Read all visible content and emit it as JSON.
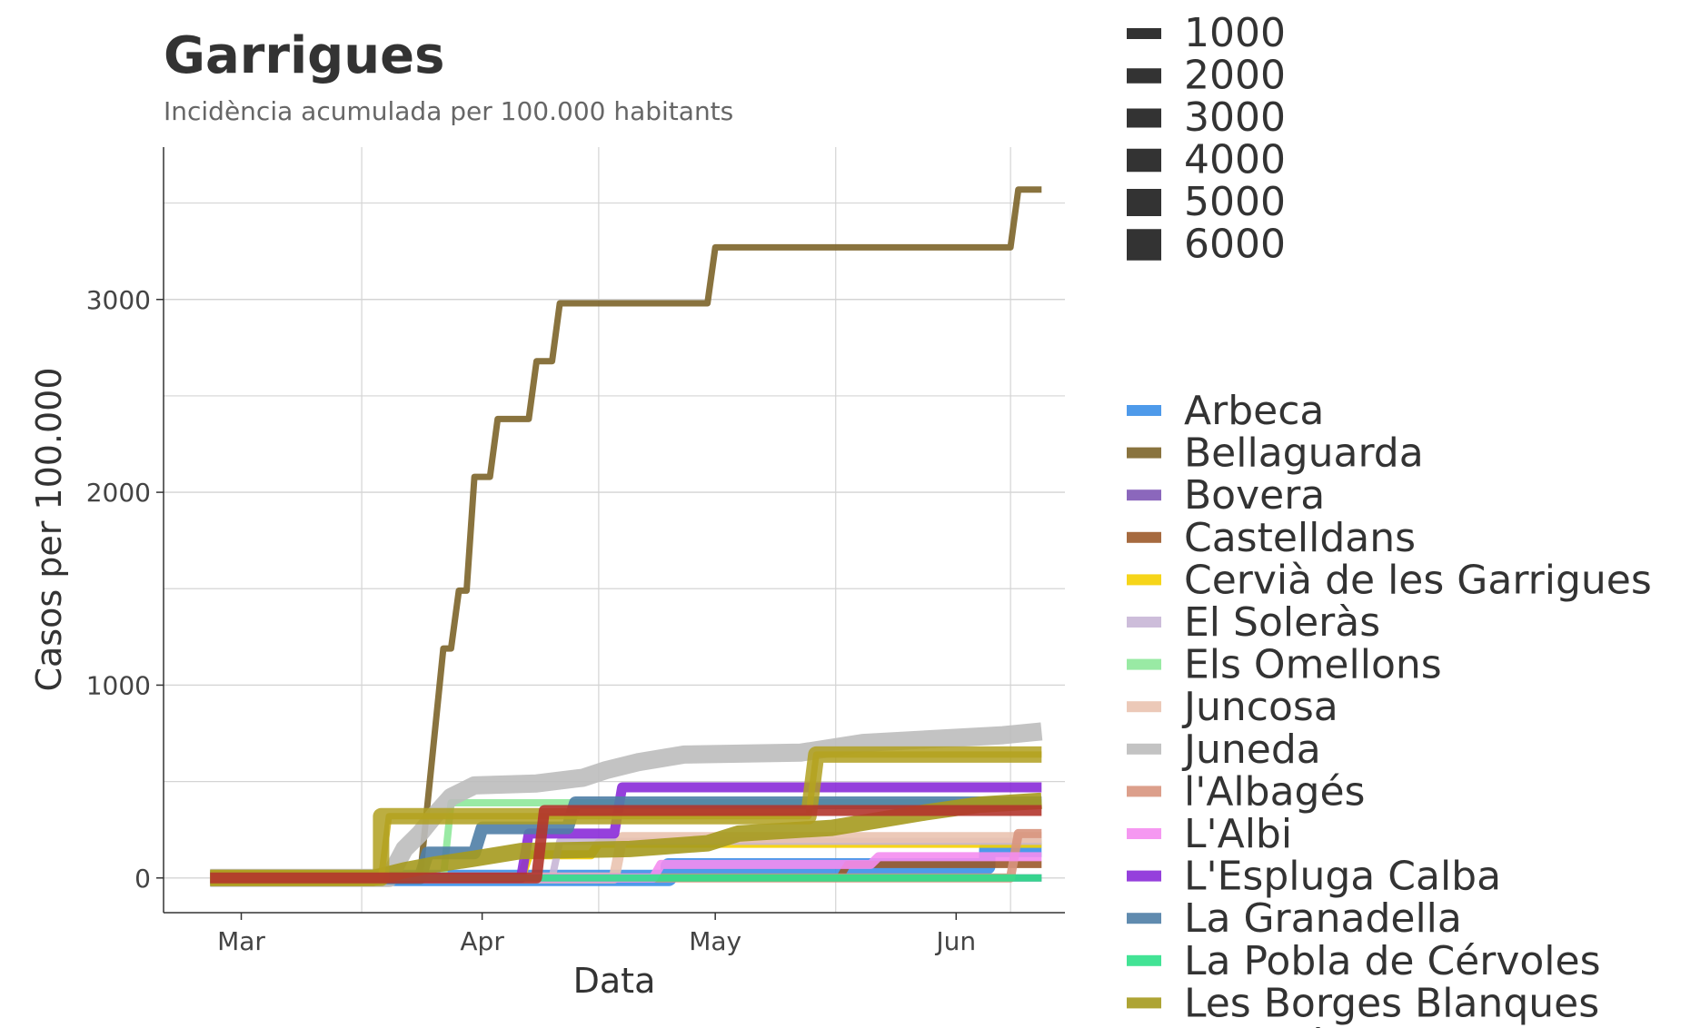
{
  "chart_data": {
    "type": "line",
    "title": "Garrigues",
    "subtitle": "Incidència acumulada per 100.000 habitants",
    "xlabel": "Data",
    "ylabel": "Casos per 100.000",
    "x_ticks": [
      {
        "label": "Mar",
        "date": "2020-03-01"
      },
      {
        "label": "Apr",
        "date": "2020-04-01"
      },
      {
        "label": "May",
        "date": "2020-05-01"
      },
      {
        "label": "Jun",
        "date": "2020-06-01"
      }
    ],
    "y_ticks": [
      0,
      1000,
      2000,
      3000
    ],
    "xlim": [
      "2020-02-20",
      "2020-06-15"
    ],
    "ylim": [
      -180,
      3790
    ],
    "grid": true,
    "size_legend": {
      "labels": [
        "1000",
        "2000",
        "3000",
        "4000",
        "5000",
        "6000"
      ],
      "color": "#333333"
    },
    "color_legend_visible_count": 16,
    "series": [
      {
        "name": "Arbeca",
        "color": "#3B8FE8",
        "opacity": 0.9,
        "width": 18,
        "points": [
          [
            "2020-02-26",
            0
          ],
          [
            "2020-04-25",
            0
          ],
          [
            "2020-04-25",
            60
          ],
          [
            "2020-06-05",
            60
          ],
          [
            "2020-06-05",
            150
          ],
          [
            "2020-06-12",
            150
          ]
        ]
      },
      {
        "name": "Bellaguarda",
        "color": "#7C6429",
        "opacity": 0.9,
        "width": 7,
        "points": [
          [
            "2020-02-26",
            0
          ],
          [
            "2020-03-24",
            0
          ],
          [
            "2020-03-27",
            1190
          ],
          [
            "2020-03-28",
            1190
          ],
          [
            "2020-03-29",
            1490
          ],
          [
            "2020-03-30",
            1490
          ],
          [
            "2020-03-31",
            2080
          ],
          [
            "2020-04-02",
            2080
          ],
          [
            "2020-04-03",
            2380
          ],
          [
            "2020-04-07",
            2380
          ],
          [
            "2020-04-08",
            2680
          ],
          [
            "2020-04-10",
            2680
          ],
          [
            "2020-04-11",
            2980
          ],
          [
            "2020-04-30",
            2980
          ],
          [
            "2020-05-01",
            3270
          ],
          [
            "2020-06-08",
            3270
          ],
          [
            "2020-06-09",
            3570
          ],
          [
            "2020-06-12",
            3570
          ]
        ]
      },
      {
        "name": "Bovera",
        "color": "#7E57B5",
        "opacity": 0.9,
        "width": 8,
        "points": [
          [
            "2020-02-26",
            0
          ],
          [
            "2020-06-12",
            0
          ]
        ]
      },
      {
        "name": "Castelldans",
        "color": "#9C5A2A",
        "opacity": 0.9,
        "width": 8,
        "points": [
          [
            "2020-02-26",
            0
          ],
          [
            "2020-05-17",
            0
          ],
          [
            "2020-05-18",
            70
          ],
          [
            "2020-06-12",
            70
          ]
        ]
      },
      {
        "name": "Cervià de les Garrigues",
        "color": "#F5D000",
        "opacity": 0.9,
        "width": 10,
        "points": [
          [
            "2020-02-26",
            0
          ],
          [
            "2020-04-06",
            0
          ],
          [
            "2020-04-07",
            120
          ],
          [
            "2020-04-15",
            120
          ],
          [
            "2020-04-16",
            180
          ],
          [
            "2020-06-12",
            180
          ]
        ]
      },
      {
        "name": "El Soleràs",
        "color": "#C8B6D6",
        "opacity": 0.9,
        "width": 8,
        "points": [
          [
            "2020-02-26",
            0
          ],
          [
            "2020-04-10",
            0
          ],
          [
            "2020-04-11",
            190
          ],
          [
            "2020-06-12",
            190
          ]
        ]
      },
      {
        "name": "Els Omellons",
        "color": "#8EE89A",
        "opacity": 0.9,
        "width": 8,
        "points": [
          [
            "2020-02-26",
            0
          ],
          [
            "2020-03-27",
            0
          ],
          [
            "2020-03-28",
            390
          ],
          [
            "2020-04-09",
            390
          ],
          [
            "2020-04-10",
            390
          ],
          [
            "2020-06-12",
            390
          ]
        ]
      },
      {
        "name": "Juncosa",
        "color": "#EAC3B0",
        "opacity": 0.9,
        "width": 12,
        "points": [
          [
            "2020-02-26",
            0
          ],
          [
            "2020-04-18",
            0
          ],
          [
            "2020-04-19",
            210
          ],
          [
            "2020-06-12",
            210
          ]
        ]
      },
      {
        "name": "Juneda",
        "color": "#BDBDBD",
        "opacity": 0.9,
        "width": 20,
        "points": [
          [
            "2020-02-26",
            0
          ],
          [
            "2020-03-20",
            0
          ],
          [
            "2020-03-22",
            150
          ],
          [
            "2020-03-24",
            230
          ],
          [
            "2020-03-26",
            330
          ],
          [
            "2020-03-28",
            420
          ],
          [
            "2020-03-31",
            480
          ],
          [
            "2020-04-08",
            490
          ],
          [
            "2020-04-14",
            520
          ],
          [
            "2020-04-17",
            560
          ],
          [
            "2020-04-21",
            600
          ],
          [
            "2020-04-27",
            640
          ],
          [
            "2020-05-12",
            650
          ],
          [
            "2020-05-20",
            700
          ],
          [
            "2020-06-07",
            740
          ],
          [
            "2020-06-12",
            760
          ]
        ]
      },
      {
        "name": "l'Albagés",
        "color": "#D8957E",
        "opacity": 0.9,
        "width": 10,
        "points": [
          [
            "2020-02-26",
            0
          ],
          [
            "2020-06-08",
            0
          ],
          [
            "2020-06-09",
            230
          ],
          [
            "2020-06-12",
            230
          ]
        ]
      },
      {
        "name": "L'Albi",
        "color": "#F48DF0",
        "opacity": 0.9,
        "width": 10,
        "points": [
          [
            "2020-02-26",
            0
          ],
          [
            "2020-04-23",
            0
          ],
          [
            "2020-04-24",
            70
          ],
          [
            "2020-05-21",
            70
          ],
          [
            "2020-05-22",
            110
          ],
          [
            "2020-06-12",
            110
          ]
        ]
      },
      {
        "name": "L'Espluga Calba",
        "color": "#8A2BD8",
        "opacity": 0.9,
        "width": 11,
        "points": [
          [
            "2020-02-26",
            0
          ],
          [
            "2020-04-06",
            0
          ],
          [
            "2020-04-07",
            230
          ],
          [
            "2020-04-18",
            230
          ],
          [
            "2020-04-19",
            470
          ],
          [
            "2020-06-12",
            470
          ]
        ]
      },
      {
        "name": "La Granadella",
        "color": "#4F7EA6",
        "opacity": 0.9,
        "width": 14,
        "points": [
          [
            "2020-02-26",
            0
          ],
          [
            "2020-03-24",
            0
          ],
          [
            "2020-03-25",
            130
          ],
          [
            "2020-03-31",
            130
          ],
          [
            "2020-04-01",
            260
          ],
          [
            "2020-04-12",
            260
          ],
          [
            "2020-04-13",
            390
          ],
          [
            "2020-06-12",
            390
          ]
        ]
      },
      {
        "name": "La Pobla de Cérvoles",
        "color": "#2EE08A",
        "opacity": 0.9,
        "width": 8,
        "points": [
          [
            "2020-02-26",
            0
          ],
          [
            "2020-06-12",
            0
          ]
        ]
      },
      {
        "name": "Les Borges Blanques",
        "color": "#A59A1E",
        "opacity": 0.9,
        "width": 18,
        "points": [
          [
            "2020-02-26",
            0
          ],
          [
            "2020-03-18",
            0
          ],
          [
            "2020-03-22",
            40
          ],
          [
            "2020-03-26",
            70
          ],
          [
            "2020-03-31",
            100
          ],
          [
            "2020-04-06",
            140
          ],
          [
            "2020-04-20",
            150
          ],
          [
            "2020-04-30",
            180
          ],
          [
            "2020-05-04",
            230
          ],
          [
            "2020-05-16",
            260
          ],
          [
            "2020-05-22",
            300
          ],
          [
            "2020-05-28",
            340
          ],
          [
            "2020-06-04",
            380
          ],
          [
            "2020-06-12",
            400
          ]
        ]
      },
      {
        "name": "Puiggròs",
        "color": "#C9B227",
        "opacity": 0.9,
        "width": 7,
        "points": [
          [
            "2020-02-26",
            0
          ],
          [
            "2020-03-19",
            0
          ],
          [
            "2020-03-20",
            320
          ],
          [
            "2020-05-13",
            320
          ],
          [
            "2020-05-14",
            640
          ],
          [
            "2020-06-12",
            640
          ]
        ]
      },
      {
        "name": "",
        "color": "#B0A020",
        "opacity": 0.85,
        "width": 18,
        "points": [
          [
            "2020-02-26",
            0
          ],
          [
            "2020-03-19",
            0
          ],
          [
            "2020-03-19",
            320
          ],
          [
            "2020-05-13",
            320
          ],
          [
            "2020-05-14",
            640
          ],
          [
            "2020-06-12",
            640
          ]
        ]
      },
      {
        "name": "",
        "color": "#B2352C",
        "opacity": 0.9,
        "width": 12,
        "points": [
          [
            "2020-02-26",
            0
          ],
          [
            "2020-04-08",
            0
          ],
          [
            "2020-04-09",
            350
          ],
          [
            "2020-06-12",
            350
          ]
        ]
      }
    ]
  }
}
